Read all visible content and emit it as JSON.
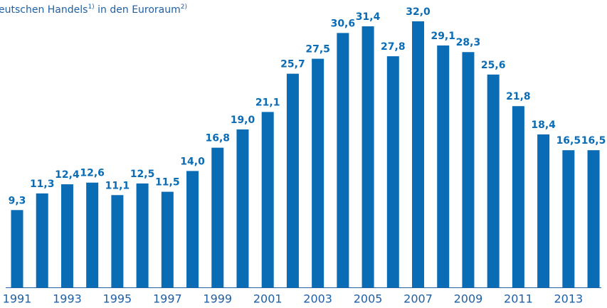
{
  "chart_data": {
    "type": "bar",
    "title": [
      "eutschen Handels",
      "1)",
      " in den Euroraum",
      "2)"
    ],
    "categories": [
      "1991",
      null,
      "1993",
      null,
      "1995",
      null,
      "1997",
      null,
      "1999",
      null,
      "2001",
      null,
      "2003",
      null,
      "2005",
      null,
      "2007",
      null,
      "2009",
      null,
      "2011",
      null,
      "2013",
      null
    ],
    "values": [
      9.3,
      11.3,
      12.4,
      12.6,
      11.1,
      12.5,
      11.5,
      14.0,
      16.8,
      19.0,
      21.1,
      25.7,
      27.5,
      30.6,
      31.4,
      27.8,
      32.0,
      29.1,
      28.3,
      25.6,
      21.8,
      18.4,
      16.5,
      16.5
    ],
    "value_labels": [
      "9,3",
      "11,3",
      "12,4",
      "12,6",
      "11,1",
      "12,5",
      "11,5",
      "14,0",
      "16,8",
      "19,0",
      "21,1",
      "25,7",
      "27,5",
      "30,6",
      "31,4",
      "27,8",
      "32,0",
      "29,1",
      "28,3",
      "25,6",
      "21,8",
      "18,4",
      "16,5",
      "16,5"
    ],
    "color": "#0a6cb5"
  }
}
